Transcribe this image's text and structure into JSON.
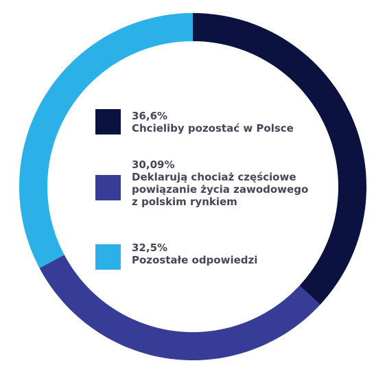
{
  "chart_data": {
    "type": "pie",
    "variant": "donut",
    "slices": [
      {
        "value": 36.6,
        "value_label": "36,6%",
        "label_lines": [
          "Chcieliby pozostać w Polsce"
        ],
        "color": "#0b1240"
      },
      {
        "value": 30.09,
        "value_label": "30,09%",
        "label_lines": [
          "Deklarują chociaż częściowe",
          "powiązanie życia zawodowego",
          "z polskim rynkiem"
        ],
        "color": "#373d96"
      },
      {
        "value": 32.5,
        "value_label": "32,5%",
        "label_lines": [
          "Pozostałe odpowiedzi"
        ],
        "color": "#2bb1e7"
      }
    ],
    "start_angle_deg": 0,
    "direction": "clockwise",
    "legend_position": "center"
  }
}
